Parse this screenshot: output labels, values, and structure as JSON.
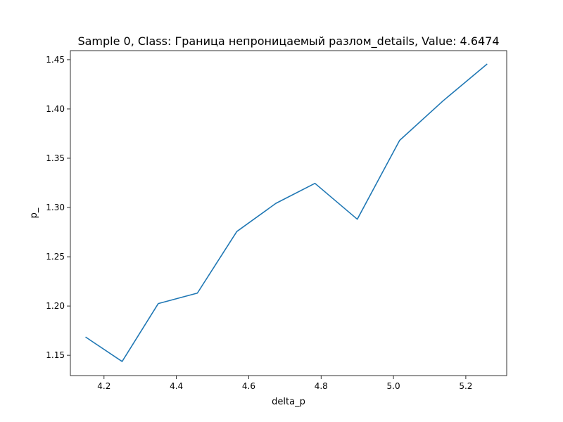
{
  "chart_data": {
    "type": "line",
    "title": "Sample 0, Class: Граница непроницаемый разлом_details, Value: 4.6474",
    "xlabel": "delta_p",
    "ylabel": "p_",
    "xlim": [
      4.107,
      5.313
    ],
    "ylim": [
      1.1294,
      1.4592
    ],
    "xticks": [
      4.2,
      4.4,
      4.6,
      4.8,
      5.0,
      5.2
    ],
    "xtick_labels": [
      "4.2",
      "4.4",
      "4.6",
      "4.8",
      "5.0",
      "5.2"
    ],
    "yticks": [
      1.15,
      1.2,
      1.25,
      1.3,
      1.35,
      1.4,
      1.45
    ],
    "ytick_labels": [
      "1.15",
      "1.20",
      "1.25",
      "1.30",
      "1.35",
      "1.40",
      "1.45"
    ],
    "grid": false,
    "series": [
      {
        "color": "#1f77b4",
        "x": [
          4.15,
          4.25,
          4.35,
          4.458,
          4.567,
          4.675,
          4.783,
          4.9,
          5.017,
          5.137,
          5.258
        ],
        "y": [
          1.1683,
          1.1437,
          1.2025,
          1.2131,
          1.2756,
          1.3042,
          1.3245,
          1.2881,
          1.3681,
          1.4082,
          1.4454
        ]
      }
    ]
  }
}
